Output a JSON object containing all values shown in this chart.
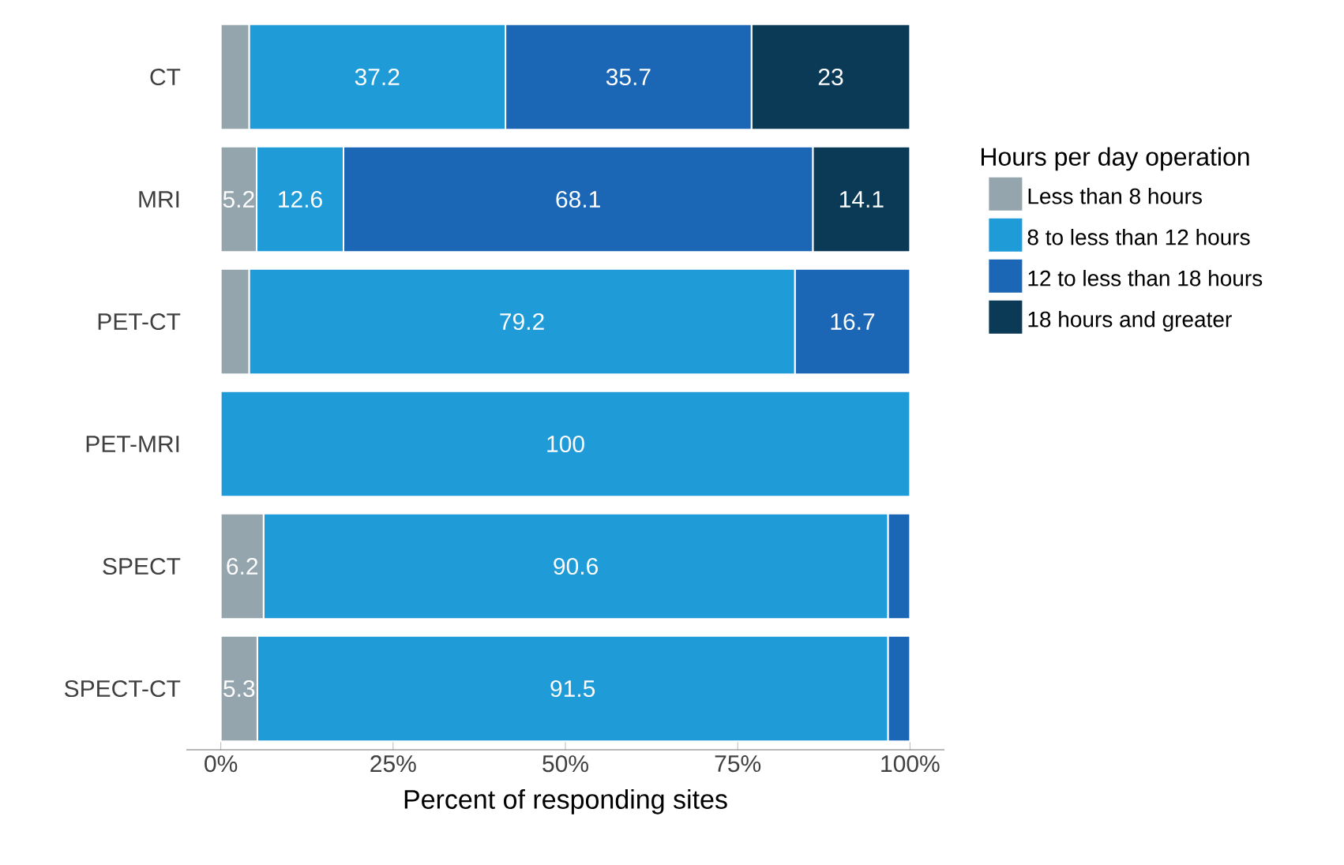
{
  "chart_data": {
    "type": "bar",
    "orientation": "horizontal",
    "stacked": true,
    "xlabel": "Percent of responding sites",
    "legend_title": "Hours per day operation",
    "legend": "right",
    "grid": false,
    "categories": [
      "CT",
      "MRI",
      "PET-CT",
      "PET-MRI",
      "SPECT",
      "SPECT-CT"
    ],
    "xlim": [
      -5,
      105
    ],
    "xticks": [
      {
        "value": 0,
        "label": "0%"
      },
      {
        "value": 25,
        "label": "25%"
      },
      {
        "value": 50,
        "label": "50%"
      },
      {
        "value": 75,
        "label": "75%"
      },
      {
        "value": 100,
        "label": "100%"
      }
    ],
    "series": [
      {
        "name": "Less than 8 hours",
        "color": "#95a5ae",
        "values": [
          4.1,
          5.2,
          4.1,
          0,
          6.2,
          5.3
        ],
        "value_labels": [
          null,
          "5.2",
          null,
          null,
          "6.2",
          "5.3"
        ]
      },
      {
        "name": "8 to less than 12 hours",
        "color": "#1f9bd8",
        "values": [
          37.2,
          12.6,
          79.2,
          100,
          90.6,
          91.5
        ],
        "value_labels": [
          "37.2",
          "12.6",
          "79.2",
          "100",
          "90.6",
          "91.5"
        ]
      },
      {
        "name": "12 to less than 18 hours",
        "color": "#1b66b5",
        "values": [
          35.7,
          68.1,
          16.7,
          0,
          3.2,
          3.2
        ],
        "value_labels": [
          "35.7",
          "68.1",
          "16.7",
          null,
          null,
          null
        ]
      },
      {
        "name": "18 hours and greater",
        "color": "#0b3a57",
        "values": [
          23,
          14.1,
          0,
          0,
          0,
          0
        ],
        "value_labels": [
          "23",
          "14.1",
          null,
          null,
          null,
          null
        ]
      }
    ]
  }
}
